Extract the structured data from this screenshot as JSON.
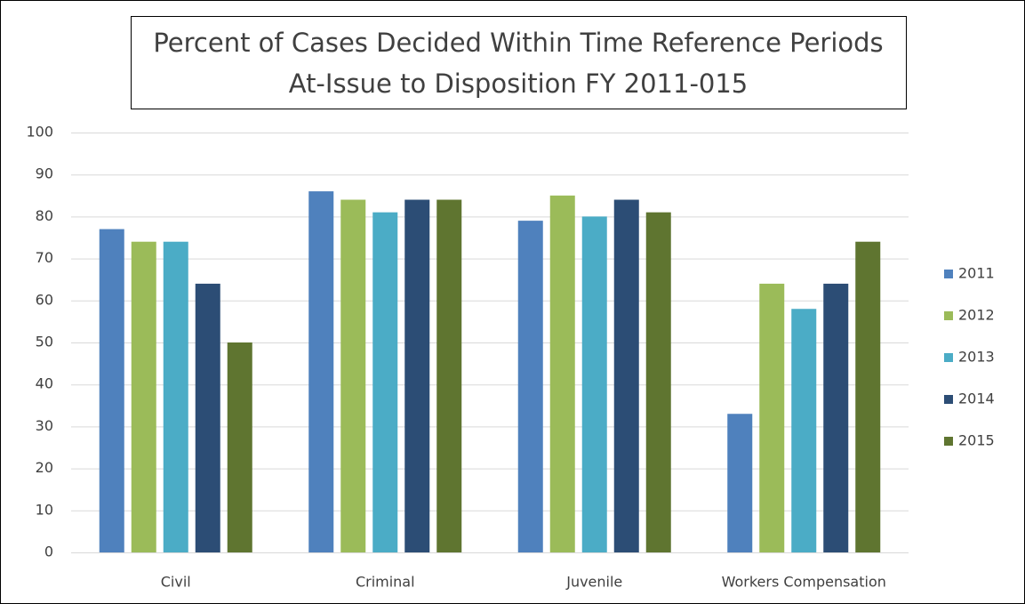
{
  "chart_data": {
    "type": "bar",
    "title": [
      "Percent of Cases Decided Within Time Reference Periods",
      "At-Issue to Disposition FY 2011-015"
    ],
    "categories": [
      "Civil",
      "Criminal",
      "Juvenile",
      "Workers Compensation"
    ],
    "series": [
      {
        "name": "2011",
        "color": "#4f81bd",
        "values": [
          77,
          86,
          79,
          33
        ]
      },
      {
        "name": "2012",
        "color": "#9bbb59",
        "values": [
          74,
          84,
          85,
          64
        ]
      },
      {
        "name": "2013",
        "color": "#4bacc6",
        "values": [
          74,
          81,
          80,
          58
        ]
      },
      {
        "name": "2014",
        "color": "#2c4d75",
        "values": [
          64,
          84,
          84,
          64
        ]
      },
      {
        "name": "2015",
        "color": "#5f7530",
        "values": [
          50,
          84,
          81,
          74
        ]
      }
    ],
    "ylim": [
      0,
      100
    ],
    "yticks": [
      0,
      10,
      20,
      30,
      40,
      50,
      60,
      70,
      80,
      90,
      100
    ],
    "grid": true,
    "legend": "right"
  }
}
